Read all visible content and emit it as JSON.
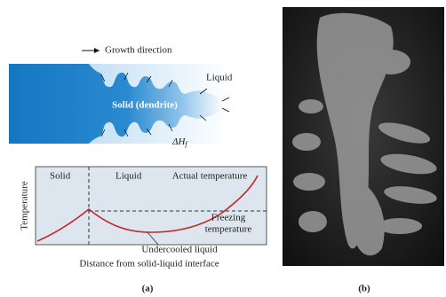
{
  "diagram": {
    "growth_label": "Growth direction",
    "liquid_label": "Liquid",
    "solid_label": "Solid (dendrite)",
    "latent_heat": {
      "symbol": "ΔH",
      "subscript": "f"
    }
  },
  "graph": {
    "y_label": "Temperature",
    "x_label": "Distance from solid-liquid interface",
    "solid_region": "Solid",
    "liquid_region": "Liquid",
    "actual_temperature": "Actual temperature",
    "freezing_temperature": [
      "Freezing",
      "temperature"
    ],
    "undercooled": "Undercooled liquid"
  },
  "captions": {
    "a": "(a)",
    "b": "(b)"
  }
}
